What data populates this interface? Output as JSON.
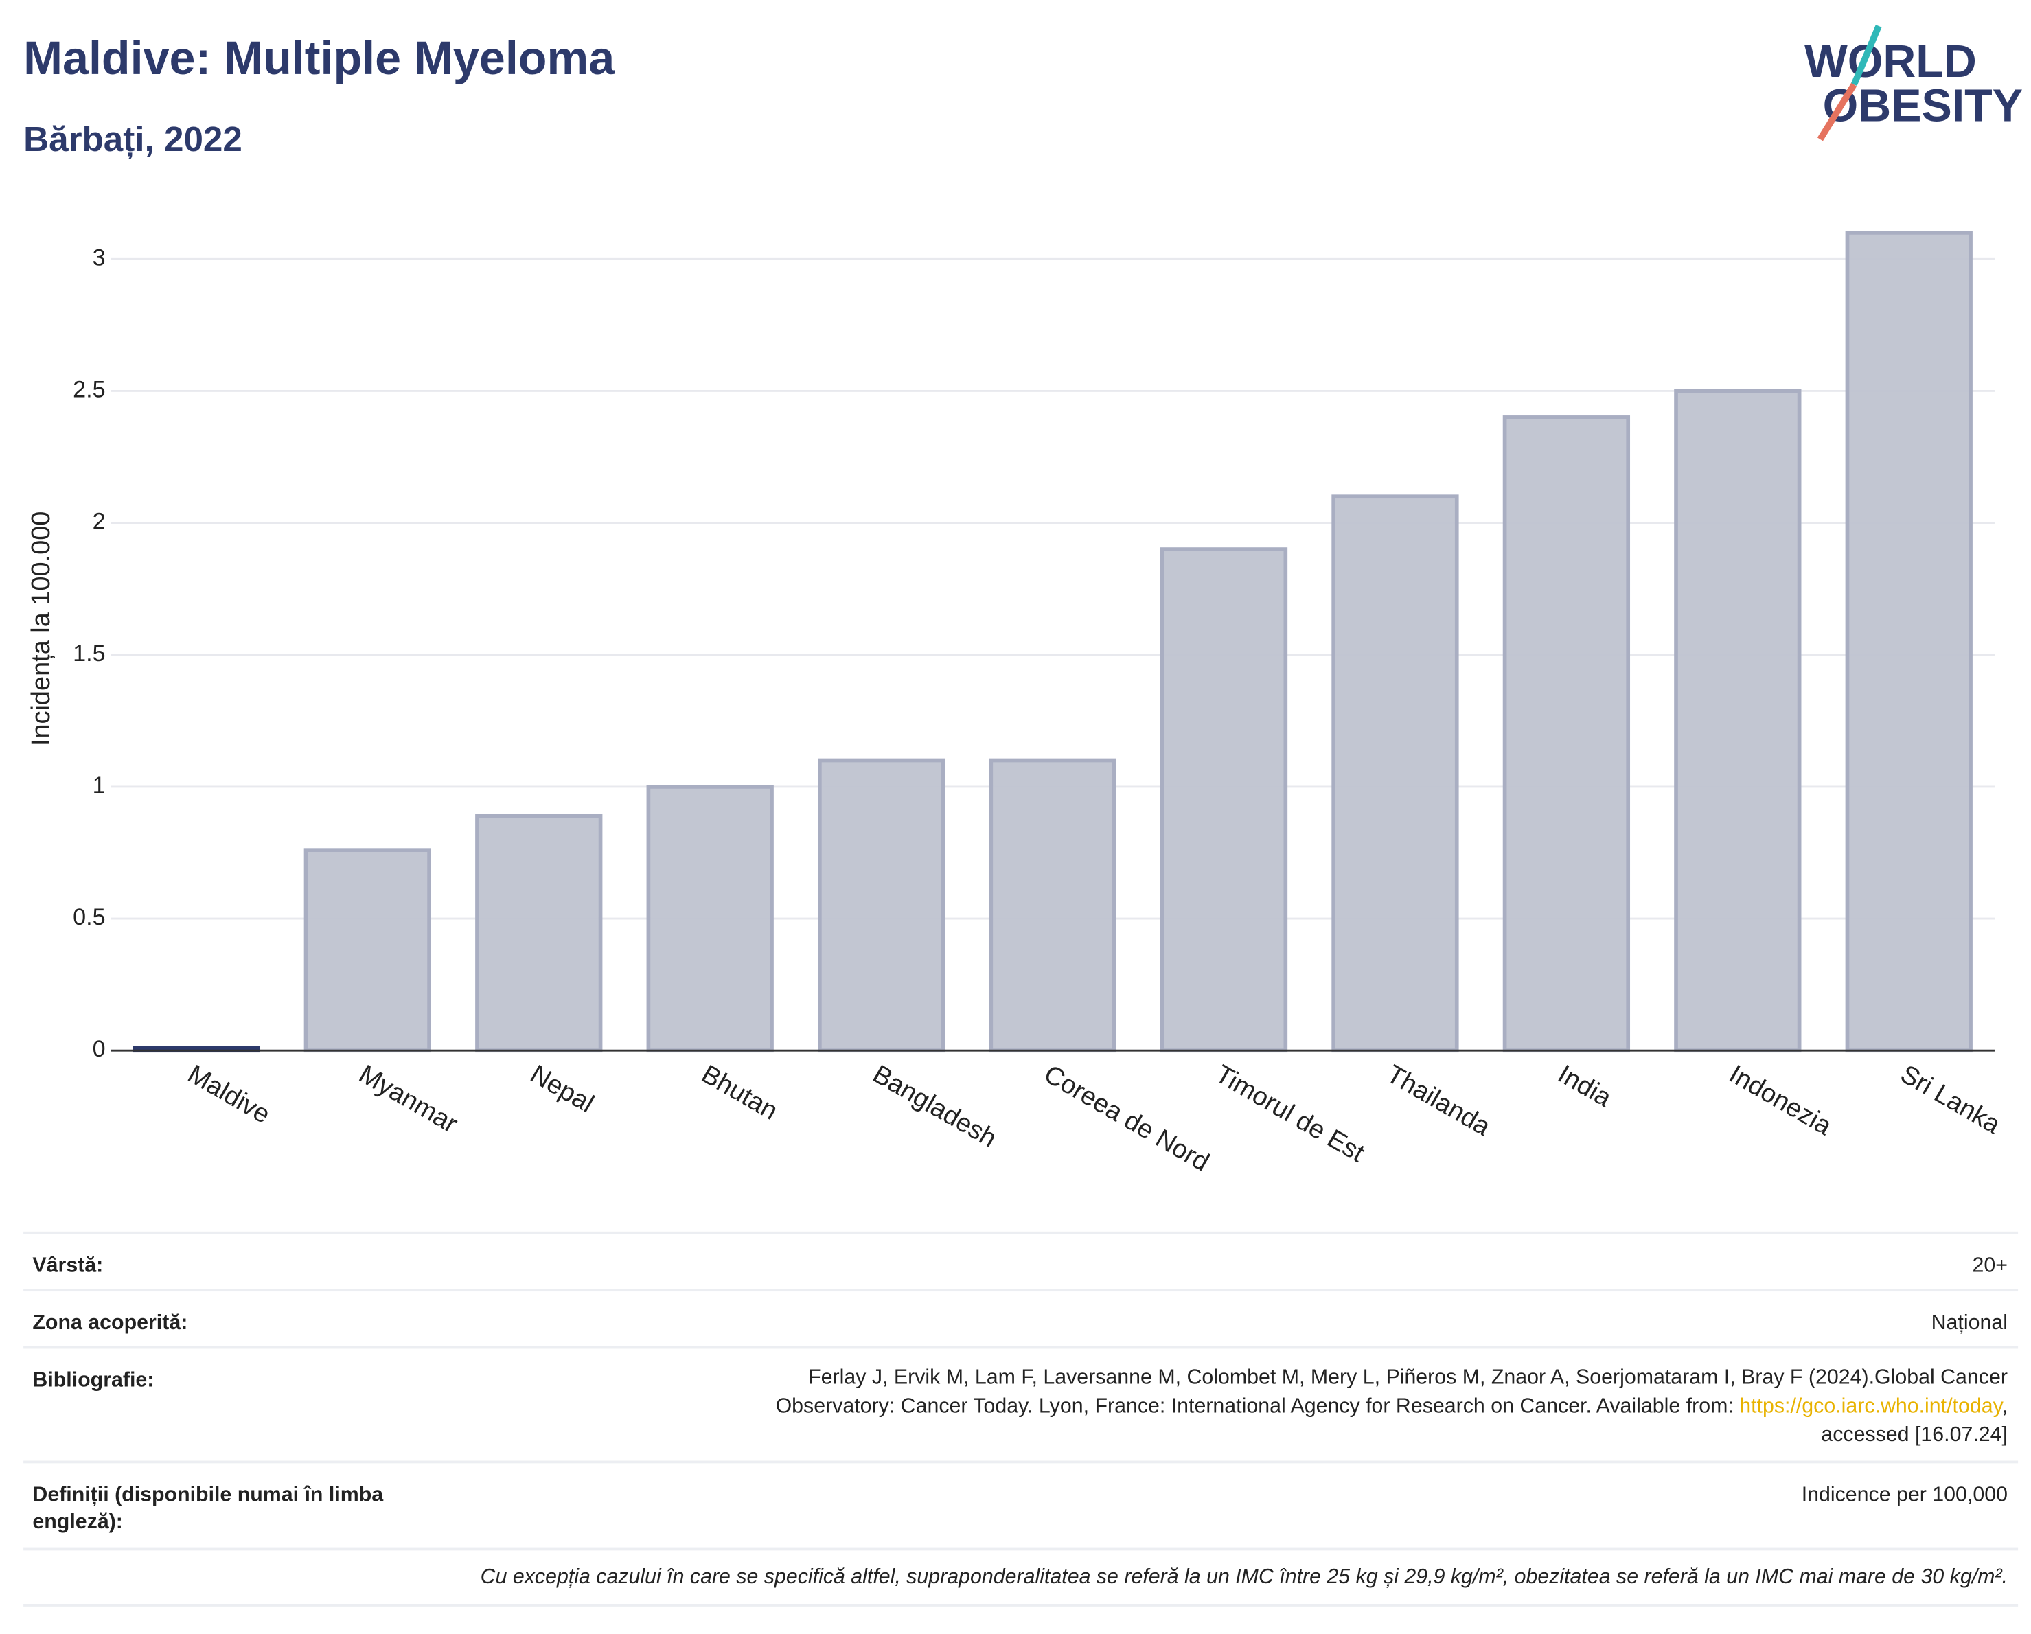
{
  "header": {
    "title": "Maldive: Multiple Myeloma",
    "subtitle": "Bărbați, 2022",
    "logo": {
      "line1": "WORLD",
      "line2": "OBESITY"
    }
  },
  "chart_data": {
    "type": "bar",
    "y_label": "Incidența la 100.000",
    "categories": [
      "Maldive",
      "Myanmar",
      "Nepal",
      "Bhutan",
      "Bangladesh",
      "Coreea de Nord",
      "Timorul de Est",
      "Thailanda",
      "India",
      "Indonezia",
      "Sri Lanka"
    ],
    "values": [
      0.01,
      0.76,
      0.89,
      1.0,
      1.1,
      1.1,
      1.9,
      2.1,
      2.4,
      2.5,
      3.1
    ],
    "colors": [
      "#2d3a6b",
      "#bfc3d0",
      "#bfc3d0",
      "#bfc3d0",
      "#bfc3d0",
      "#bfc3d0",
      "#bfc3d0",
      "#bfc3d0",
      "#bfc3d0",
      "#bfc3d0",
      "#bfc3d0"
    ],
    "ylim": [
      0,
      3.2
    ],
    "yticks": [
      0,
      0.5,
      1,
      1.5,
      2,
      2.5,
      3
    ],
    "grid": true
  },
  "table": {
    "rows": [
      {
        "label": "Vârstă:",
        "value": "20+"
      },
      {
        "label": "Zona acoperită:",
        "value": "Național"
      },
      {
        "label": "Bibliografie:",
        "value": [
          "Ferlay J, Ervik M, Lam F, Laversanne M, Colombet M, Mery L, Piñeros M, Znaor A, Soerjomataram I, Bray F (2024).Global Cancer",
          "Observatory: Cancer Today. Lyon, France: International Agency for Research on Cancer. Available from: ",
          "https://gco.iarc.who.int/today",
          ",",
          "accessed [16.07.24]"
        ]
      },
      {
        "label": "Definiții (disponibile numai în limba engleză):",
        "value": "Indicence per 100,000"
      }
    ],
    "footnote": "Cu excepția cazului în care se specifică altfel, supraponderalitatea se referă la un IMC între 25 kg și 29,9 kg/m², obezitatea se referă la un IMC mai mare de 30 kg/m²."
  }
}
